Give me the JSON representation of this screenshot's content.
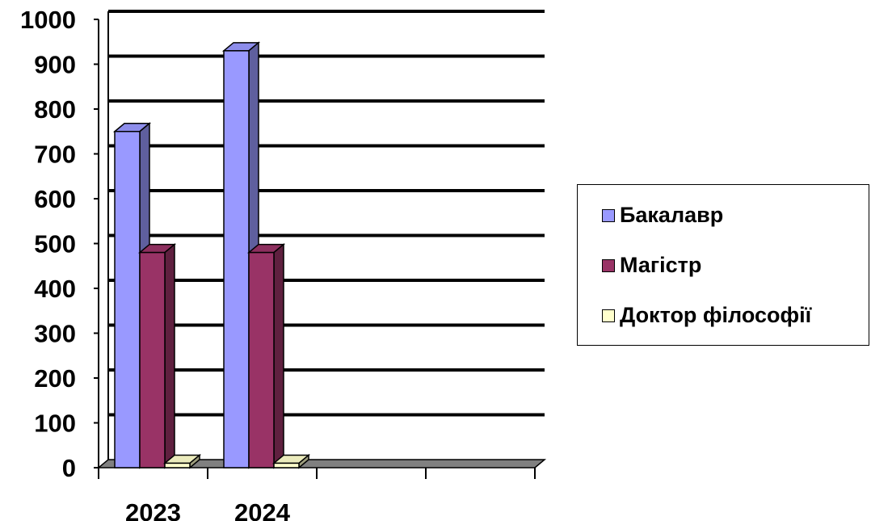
{
  "chart_data": {
    "type": "bar",
    "categories": [
      "2023",
      "2024",
      "",
      ""
    ],
    "series": [
      {
        "name": "Бакалавр",
        "values": [
          750,
          930,
          null,
          null
        ],
        "color": "#9999ff"
      },
      {
        "name": "Магістр",
        "values": [
          480,
          480,
          null,
          null
        ],
        "color": "#993366"
      },
      {
        "name": "Доктор філософії",
        "values": [
          10,
          10,
          null,
          null
        ],
        "color": "#ffffcc"
      }
    ],
    "y_ticks": [
      "0",
      "100",
      "200",
      "300",
      "400",
      "500",
      "600",
      "700",
      "800",
      "900",
      "1000"
    ],
    "ylim": [
      0,
      1000
    ],
    "grid": true,
    "three_d": true,
    "legend_position": "right",
    "colors": {
      "grid": "#000000",
      "floor": "#808080",
      "wall": "#ffffff"
    }
  }
}
